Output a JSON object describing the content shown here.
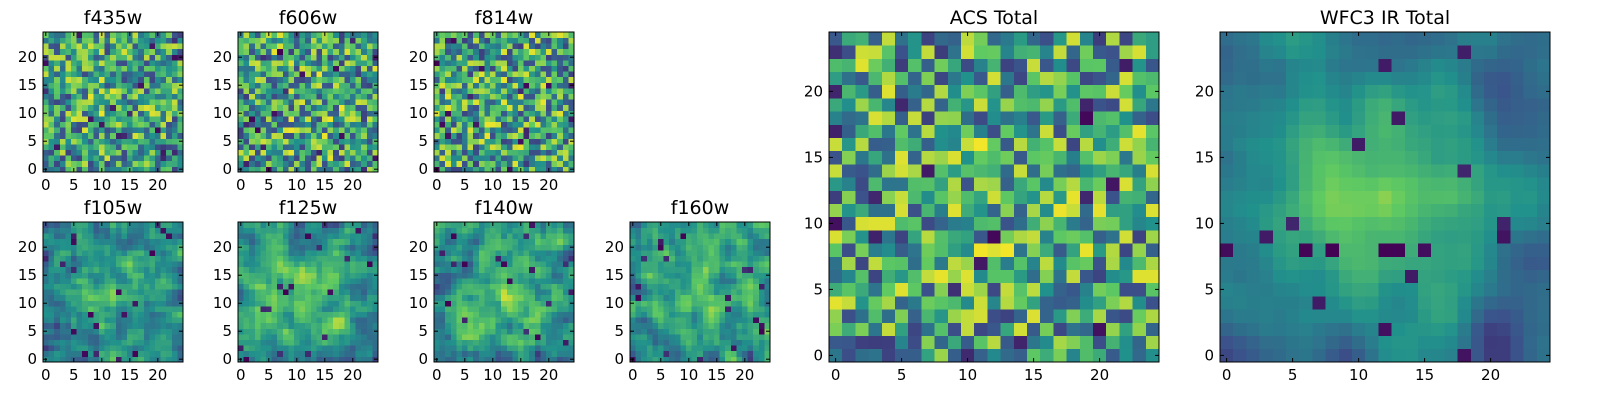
{
  "chart_data": [
    {
      "type": "heatmap",
      "title": "f435w",
      "grid_size": 25,
      "seed": 11,
      "smooth": 0,
      "center_boost": 0.1,
      "xticks": [
        0,
        5,
        10,
        15,
        20
      ],
      "yticks": [
        0,
        5,
        10,
        15,
        20
      ],
      "xlim": [
        0,
        24
      ],
      "ylim": [
        0,
        24
      ],
      "colormap": "viridis",
      "value_range": [
        0,
        1
      ]
    },
    {
      "type": "heatmap",
      "title": "f606w",
      "grid_size": 25,
      "seed": 23,
      "smooth": 0,
      "center_boost": 0.05,
      "xticks": [
        0,
        5,
        10,
        15,
        20
      ],
      "yticks": [
        0,
        5,
        10,
        15,
        20
      ],
      "xlim": [
        0,
        24
      ],
      "ylim": [
        0,
        24
      ],
      "colormap": "viridis",
      "value_range": [
        0,
        1
      ]
    },
    {
      "type": "heatmap",
      "title": "f814w",
      "grid_size": 25,
      "seed": 37,
      "smooth": 0,
      "center_boost": 0.05,
      "xticks": [
        0,
        5,
        10,
        15,
        20
      ],
      "yticks": [
        0,
        5,
        10,
        15,
        20
      ],
      "xlim": [
        0,
        24
      ],
      "ylim": [
        0,
        24
      ],
      "colormap": "viridis",
      "value_range": [
        0,
        1
      ]
    },
    {
      "type": "heatmap",
      "title": "f105w",
      "grid_size": 25,
      "seed": 41,
      "smooth": 1,
      "center_boost": 0.3,
      "xticks": [
        0,
        5,
        10,
        15,
        20
      ],
      "yticks": [
        0,
        5,
        10,
        15,
        20
      ],
      "xlim": [
        0,
        24
      ],
      "ylim": [
        0,
        24
      ],
      "colormap": "viridis",
      "value_range": [
        0,
        1
      ]
    },
    {
      "type": "heatmap",
      "title": "f125w",
      "grid_size": 25,
      "seed": 53,
      "smooth": 1,
      "center_boost": 0.25,
      "xticks": [
        0,
        5,
        10,
        15,
        20
      ],
      "yticks": [
        0,
        5,
        10,
        15,
        20
      ],
      "xlim": [
        0,
        24
      ],
      "ylim": [
        0,
        24
      ],
      "colormap": "viridis",
      "value_range": [
        0,
        1
      ]
    },
    {
      "type": "heatmap",
      "title": "f140w",
      "grid_size": 25,
      "seed": 67,
      "smooth": 1,
      "center_boost": 0.25,
      "xticks": [
        0,
        5,
        10,
        15,
        20
      ],
      "yticks": [
        0,
        5,
        10,
        15,
        20
      ],
      "xlim": [
        0,
        24
      ],
      "ylim": [
        0,
        24
      ],
      "colormap": "viridis",
      "value_range": [
        0,
        1
      ]
    },
    {
      "type": "heatmap",
      "title": "f160w",
      "grid_size": 25,
      "seed": 79,
      "smooth": 1,
      "center_boost": 0.25,
      "xticks": [
        0,
        5,
        10,
        15,
        20
      ],
      "yticks": [
        0,
        5,
        10,
        15,
        20
      ],
      "xlim": [
        0,
        24
      ],
      "ylim": [
        0,
        24
      ],
      "colormap": "viridis",
      "value_range": [
        0,
        1
      ]
    },
    {
      "type": "heatmap",
      "title": "ACS Total",
      "grid_size": 25,
      "seed": 97,
      "smooth": 0,
      "center_boost": 0.05,
      "xticks": [
        0,
        5,
        10,
        15,
        20
      ],
      "yticks": [
        0,
        5,
        10,
        15,
        20
      ],
      "xlim": [
        0,
        24
      ],
      "ylim": [
        0,
        24
      ],
      "colormap": "viridis",
      "value_range": [
        0,
        1
      ]
    },
    {
      "type": "heatmap",
      "title": "WFC3 IR Total",
      "grid_size": 25,
      "seed": 131,
      "smooth": 2,
      "center_boost": 0.55,
      "xticks": [
        0,
        5,
        10,
        15,
        20
      ],
      "yticks": [
        0,
        5,
        10,
        15,
        20
      ],
      "xlim": [
        0,
        24
      ],
      "ylim": [
        0,
        24
      ],
      "colormap": "viridis",
      "value_range": [
        0,
        1
      ]
    }
  ],
  "colors": {
    "viridis_dark": "#440154",
    "viridis_blue": "#31688e",
    "viridis_teal": "#21918c",
    "viridis_green": "#5ec962",
    "viridis_yellow": "#fde725",
    "axis": "#000000",
    "background": "#ffffff"
  }
}
